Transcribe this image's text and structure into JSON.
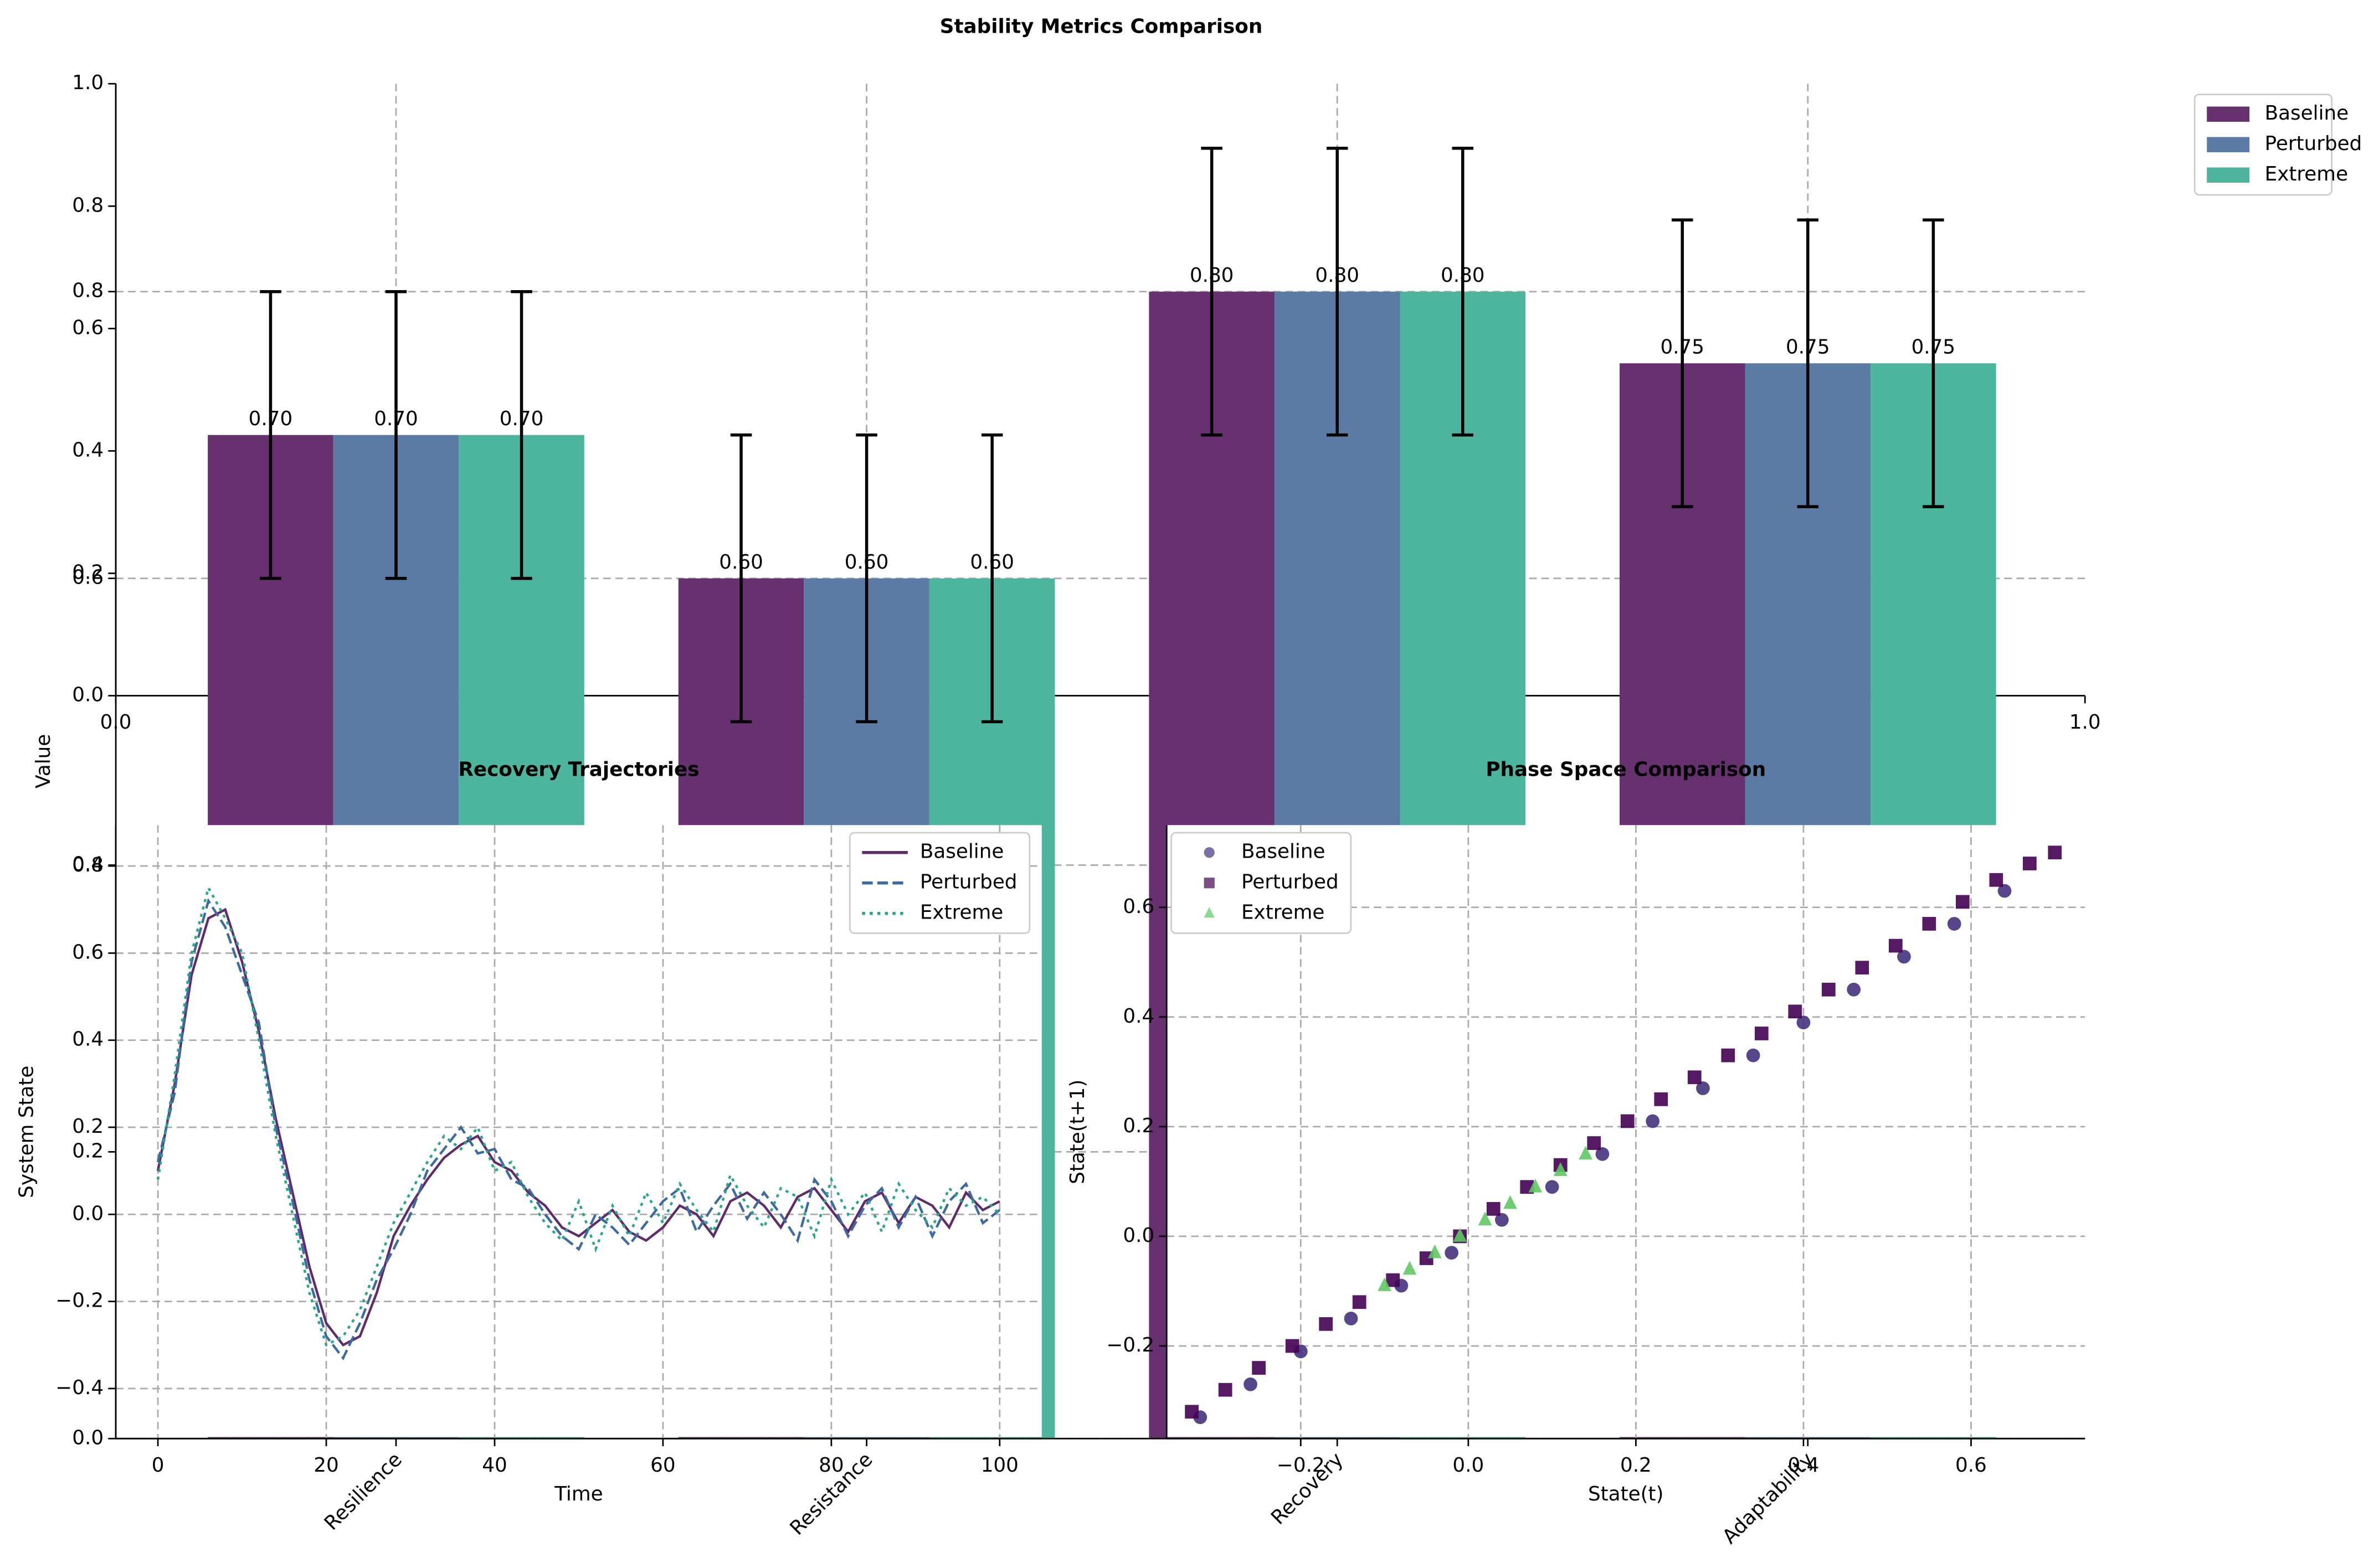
{
  "chart_data": [
    {
      "type": "empty",
      "xlim": [
        0,
        1
      ],
      "ylim": [
        0,
        1
      ],
      "xticks": [
        {
          "value": 0,
          "label": "0.0"
        },
        {
          "value": 1,
          "label": "1.0"
        }
      ],
      "yticks": [
        {
          "value": 0,
          "label": "0.0"
        },
        0.2,
        0.4,
        0.6,
        0.8,
        {
          "value": 1,
          "label": "1.0"
        }
      ]
    },
    {
      "type": "bar",
      "title": "Stability Metrics Comparison",
      "ylabel": "Value",
      "categories": [
        "Resilience",
        "Resistance",
        "Recovery",
        "Adaptability"
      ],
      "series": [
        {
          "name": "Baseline",
          "color": "#67306f",
          "values": [
            0.7,
            0.6,
            0.8,
            0.75
          ],
          "errors": [
            0.1,
            0.1,
            0.1,
            0.1
          ],
          "value_labels": [
            "0.70",
            "0.60",
            "0.80",
            "0.75"
          ]
        },
        {
          "name": "Perturbed",
          "color": "#5b7ba5",
          "values": [
            0.7,
            0.6,
            0.8,
            0.75
          ],
          "errors": [
            0.1,
            0.1,
            0.1,
            0.1
          ],
          "value_labels": [
            "0.70",
            "0.60",
            "0.80",
            "0.75"
          ]
        },
        {
          "name": "Extreme",
          "color": "#4db59e",
          "values": [
            0.7,
            0.6,
            0.8,
            0.75
          ],
          "errors": [
            0.1,
            0.1,
            0.1,
            0.1
          ],
          "value_labels": [
            "0.70",
            "0.60",
            "0.80",
            "0.75"
          ]
        }
      ],
      "ylim": [
        0,
        0.945
      ],
      "yticks": [
        {
          "value": 0,
          "label": "0.0"
        },
        0.2,
        0.4,
        0.6,
        0.8
      ],
      "grid": true,
      "legend": "outside-right"
    },
    {
      "type": "line",
      "title": "Recovery Trajectories",
      "xlabel": "Time",
      "ylabel": "System State",
      "x": [
        0,
        2,
        4,
        6,
        8,
        10,
        12,
        14,
        16,
        18,
        20,
        22,
        24,
        26,
        28,
        30,
        32,
        34,
        36,
        38,
        40,
        42,
        44,
        46,
        48,
        50,
        52,
        54,
        56,
        58,
        60,
        62,
        64,
        66,
        68,
        70,
        72,
        74,
        76,
        78,
        80,
        82,
        84,
        86,
        88,
        90,
        92,
        94,
        96,
        98,
        100
      ],
      "series": [
        {
          "name": "Baseline",
          "color": "#5e2b6b",
          "linestyle": "solid",
          "values": [
            0.1,
            0.3,
            0.55,
            0.68,
            0.7,
            0.58,
            0.42,
            0.22,
            0.05,
            -0.12,
            -0.25,
            -0.3,
            -0.28,
            -0.18,
            -0.05,
            0.02,
            0.08,
            0.13,
            0.16,
            0.18,
            0.12,
            0.1,
            0.05,
            0.02,
            -0.03,
            -0.05,
            -0.02,
            0.01,
            -0.04,
            -0.06,
            -0.03,
            0.02,
            0.0,
            -0.05,
            0.03,
            0.05,
            0.02,
            -0.03,
            0.04,
            0.06,
            0.01,
            -0.04,
            0.03,
            0.05,
            -0.02,
            0.04,
            0.02,
            -0.03,
            0.05,
            0.01,
            0.03
          ]
        },
        {
          "name": "Perturbed",
          "color": "#3e6a9e",
          "linestyle": "dashed",
          "values": [
            0.12,
            0.28,
            0.58,
            0.72,
            0.66,
            0.55,
            0.44,
            0.2,
            0.03,
            -0.15,
            -0.28,
            -0.33,
            -0.25,
            -0.15,
            -0.08,
            0.0,
            0.1,
            0.15,
            0.2,
            0.14,
            0.15,
            0.08,
            0.06,
            0.0,
            -0.05,
            -0.08,
            0.0,
            -0.03,
            -0.07,
            -0.02,
            0.03,
            0.06,
            -0.04,
            0.02,
            0.07,
            -0.01,
            0.05,
            0.0,
            -0.06,
            0.08,
            0.03,
            -0.05,
            0.02,
            0.06,
            -0.03,
            0.04,
            -0.05,
            0.03,
            0.07,
            -0.02,
            0.01
          ]
        },
        {
          "name": "Extreme",
          "color": "#2aa58c",
          "linestyle": "dotted",
          "values": [
            0.08,
            0.32,
            0.6,
            0.75,
            0.68,
            0.6,
            0.4,
            0.18,
            0.0,
            -0.18,
            -0.3,
            -0.28,
            -0.22,
            -0.12,
            -0.02,
            0.05,
            0.12,
            0.18,
            0.15,
            0.2,
            0.1,
            0.12,
            0.04,
            -0.02,
            -0.06,
            0.03,
            -0.08,
            0.02,
            -0.05,
            0.05,
            -0.02,
            0.07,
            0.01,
            -0.04,
            0.09,
            0.02,
            -0.03,
            0.06,
            0.04,
            -0.05,
            0.08,
            0.0,
            0.05,
            -0.04,
            0.07,
            0.01,
            -0.03,
            0.06,
            0.02,
            0.04,
            0.0
          ]
        }
      ],
      "xlim": [
        -5,
        105
      ],
      "ylim": [
        -0.515,
        0.894
      ],
      "xticks": [
        0,
        20,
        40,
        60,
        80,
        100
      ],
      "yticks": [
        {
          "value": -0.4,
          "label": "−0.4"
        },
        {
          "value": -0.2,
          "label": "−0.2"
        },
        {
          "value": 0,
          "label": "0.0"
        },
        0.2,
        0.4,
        0.6,
        0.8
      ],
      "grid": true,
      "legend": "upper-right"
    },
    {
      "type": "scatter",
      "title": "Phase Space Comparison",
      "xlabel": "State(t)",
      "ylabel": "State(t+1)",
      "series": [
        {
          "name": "Baseline",
          "color": "#46327e",
          "marker": "circle",
          "x": [
            -0.32,
            -0.26,
            -0.2,
            -0.14,
            -0.08,
            -0.02,
            0.04,
            0.1,
            0.16,
            0.22,
            0.28,
            0.34,
            0.4,
            0.46,
            0.52,
            0.58,
            0.64
          ],
          "y": [
            -0.33,
            -0.27,
            -0.21,
            -0.15,
            -0.09,
            -0.03,
            0.03,
            0.09,
            0.15,
            0.21,
            0.27,
            0.33,
            0.39,
            0.45,
            0.51,
            0.57,
            0.63
          ]
        },
        {
          "name": "Perturbed",
          "color": "#440154",
          "marker": "square",
          "x": [
            -0.33,
            -0.29,
            -0.25,
            -0.21,
            -0.17,
            -0.13,
            -0.09,
            -0.05,
            -0.01,
            0.03,
            0.07,
            0.11,
            0.15,
            0.19,
            0.23,
            0.27,
            0.31,
            0.35,
            0.39,
            0.43,
            0.47,
            0.51,
            0.55,
            0.59,
            0.63,
            0.67,
            0.7
          ],
          "y": [
            -0.32,
            -0.28,
            -0.24,
            -0.2,
            -0.16,
            -0.12,
            -0.08,
            -0.04,
            0.0,
            0.05,
            0.09,
            0.13,
            0.17,
            0.21,
            0.25,
            0.29,
            0.33,
            0.37,
            0.41,
            0.45,
            0.49,
            0.53,
            0.57,
            0.61,
            0.65,
            0.68,
            0.7
          ]
        },
        {
          "name": "Extreme",
          "color": "#5ec962",
          "marker": "triangle",
          "x": [
            -0.1,
            -0.07,
            -0.04,
            -0.01,
            0.02,
            0.05,
            0.08,
            0.11,
            0.14
          ],
          "y": [
            -0.09,
            -0.06,
            -0.03,
            0.0,
            0.03,
            0.06,
            0.09,
            0.12,
            0.15
          ]
        }
      ],
      "xlim": [
        -0.36,
        0.736
      ],
      "ylim": [
        -0.369,
        0.75
      ],
      "xticks": [
        {
          "value": -0.2,
          "label": "−0.2"
        },
        {
          "value": 0,
          "label": "0.0"
        },
        0.2,
        0.4,
        0.6
      ],
      "yticks": [
        {
          "value": -0.2,
          "label": "−0.2"
        },
        {
          "value": 0,
          "label": "0.0"
        },
        0.2,
        0.4,
        0.6
      ],
      "grid": true,
      "legend": "upper-left"
    }
  ]
}
